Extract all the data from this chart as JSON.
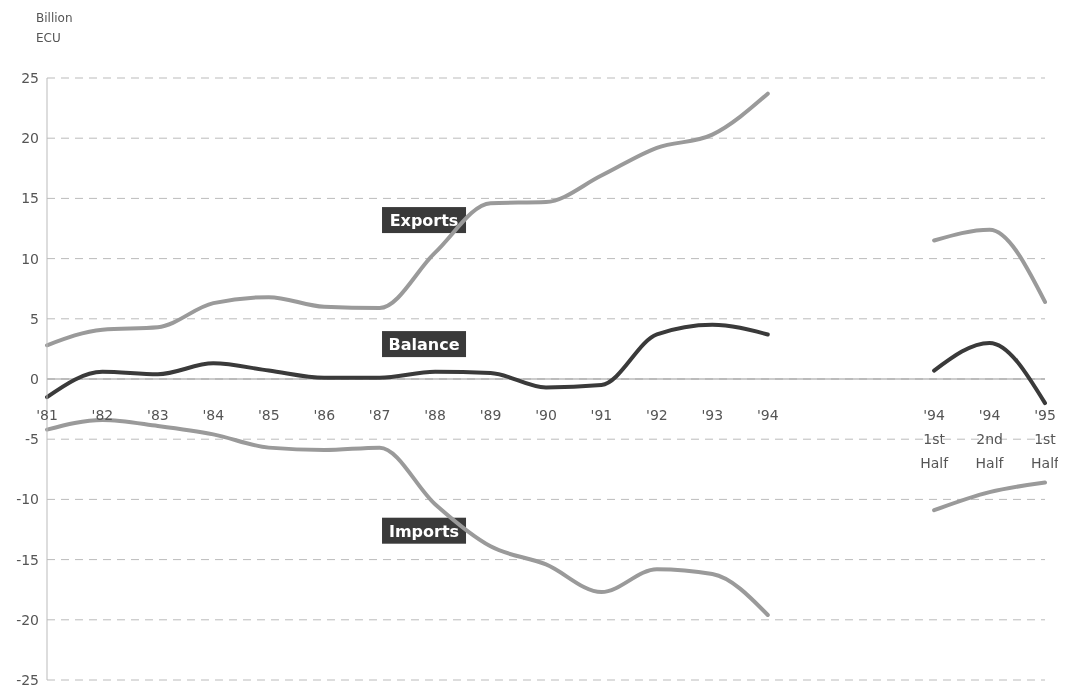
{
  "chart_data": {
    "type": "line",
    "ylabel": "Billion\nECU",
    "categories": [
      "'81",
      "'82",
      "'83",
      "'84",
      "'85",
      "'86",
      "'87",
      "'88",
      "'89",
      "'90",
      "'91",
      "'92",
      "'93",
      "'94",
      null,
      null,
      "'94\n1st\nHalf",
      "'94\n2nd\nHalf",
      "'95\n1st\nHalf"
    ],
    "series": [
      {
        "name": "Exports",
        "color": "#9a9a9a",
        "values": [
          2.8,
          4.1,
          4.3,
          6.3,
          6.8,
          6.0,
          5.9,
          10.5,
          14.6,
          14.7,
          16.9,
          19.2,
          20.3,
          23.7,
          null,
          null,
          11.5,
          12.4,
          6.4
        ]
      },
      {
        "name": "Balance",
        "color": "#3a3a3a",
        "values": [
          -1.5,
          0.6,
          0.4,
          1.3,
          0.7,
          0.1,
          0.1,
          0.6,
          0.5,
          -0.7,
          -0.5,
          3.7,
          4.5,
          3.7,
          null,
          null,
          0.7,
          3.0,
          -2.0
        ]
      },
      {
        "name": "Imports",
        "color": "#9a9a9a",
        "values": [
          -4.2,
          -3.4,
          -3.9,
          -4.6,
          -5.7,
          -5.9,
          -5.7,
          -10.4,
          -13.9,
          -15.4,
          -17.7,
          -15.8,
          -16.2,
          -19.6,
          null,
          null,
          -10.9,
          -9.4,
          -8.6
        ]
      }
    ],
    "ylim": [
      -25,
      25
    ],
    "yticks": [
      -25,
      -20,
      -15,
      -10,
      -5,
      0,
      5,
      10,
      15,
      20,
      25
    ],
    "grid": "y",
    "legend": false,
    "marker": "none",
    "line_style": "solid"
  }
}
